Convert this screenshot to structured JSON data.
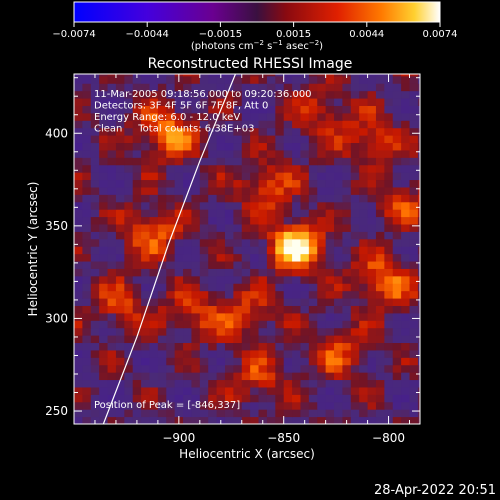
{
  "chart_data": {
    "type": "heatmap",
    "title": "Reconstructed RHESSI Image",
    "xlabel": "Heliocentric X (arcsec)",
    "ylabel": "Heliocentric Y (arcsec)",
    "xlim": [
      -950,
      -785
    ],
    "ylim": [
      243,
      432
    ],
    "x_ticks": [
      {
        "value": -900,
        "label": "−900"
      },
      {
        "value": -850,
        "label": "−850"
      },
      {
        "value": -800,
        "label": "−800"
      }
    ],
    "y_ticks": [
      {
        "value": 250,
        "label": "250"
      },
      {
        "value": 300,
        "label": "300"
      },
      {
        "value": 350,
        "label": "350"
      },
      {
        "value": 400,
        "label": "400"
      }
    ],
    "colorbar": {
      "ticks": [
        "−0.0074",
        "−0.0044",
        "−0.0015",
        "0.0015",
        "0.0044",
        "0.0074"
      ],
      "range": [
        -0.0074,
        0.0074
      ],
      "unit_base": "(photons cm",
      "unit_exp1": "−2",
      "unit_mid": " s",
      "unit_exp2": "−1",
      "unit_mid2": " asec",
      "unit_exp3": "−2",
      "unit_end": ")",
      "colors_negative": [
        "#0000ff",
        "#5500cc",
        "#6a00a0",
        "#4d2a70"
      ],
      "colors_positive": [
        "#6a1010",
        "#c01800",
        "#ff5a00",
        "#ffa000",
        "#ffe060",
        "#ffffff"
      ]
    },
    "annotations": [
      "11-Mar-2005 09:18:56.000 to 09:20:36.000",
      "Detectors: 3F 4F 5F 6F 7F 8F, Att 0",
      "Energy Range: 6.0 - 12.0 keV",
      "Clean     Total counts: 6.38E+03"
    ],
    "peak_label": "Position of Peak = [-846,337]",
    "peak": [
      -846,
      337
    ],
    "sources": [
      {
        "x": -846,
        "y": 337,
        "peak": 0.0074
      },
      {
        "x": -908,
        "y": 398,
        "peak": 0.0048
      },
      {
        "x": -915,
        "y": 345,
        "peak": 0.0038
      },
      {
        "x": -805,
        "y": 318,
        "peak": 0.0045
      },
      {
        "x": -860,
        "y": 370,
        "peak": 0.0035
      },
      {
        "x": -870,
        "y": 300,
        "peak": 0.003
      },
      {
        "x": -825,
        "y": 280,
        "peak": 0.003
      },
      {
        "x": -865,
        "y": 265,
        "peak": 0.0028
      },
      {
        "x": -810,
        "y": 395,
        "peak": 0.0032
      },
      {
        "x": -895,
        "y": 300,
        "peak": 0.003
      },
      {
        "x": -835,
        "y": 410,
        "peak": 0.0025
      },
      {
        "x": -795,
        "y": 360,
        "peak": 0.0028
      },
      {
        "x": -930,
        "y": 305,
        "peak": 0.0028
      }
    ],
    "limb_curve": [
      [
        -936,
        243
      ],
      [
        -920,
        290
      ],
      [
        -905,
        340
      ],
      [
        -890,
        385
      ],
      [
        -873,
        432
      ]
    ]
  },
  "footer": {
    "timestamp": "28-Apr-2022 20:51"
  }
}
